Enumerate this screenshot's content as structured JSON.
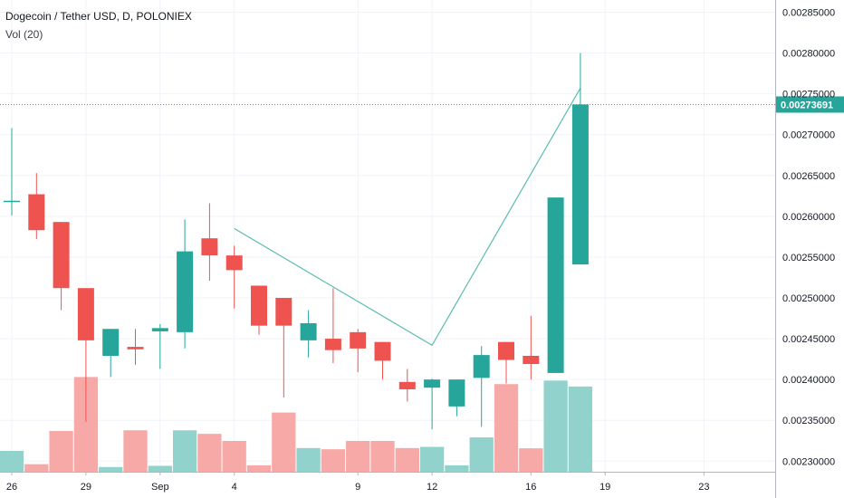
{
  "header": {
    "title": "Dogecoin / Tether USD, D, POLONIEX",
    "volume_label": "Vol (20)"
  },
  "colors": {
    "up": "#26a69a",
    "down": "#ef5350",
    "up_volume": "#92d2cc",
    "down_volume": "#f7a9a7",
    "last_price": "#26a69a",
    "trendline": "#5bbcb0",
    "grid": "#f0f3fa",
    "axis_text": "#131722"
  },
  "chart_data": {
    "type": "candlestick",
    "title": "Dogecoin / Tether USD, D, POLONIEX",
    "y_ticks": [
      "0.00230000",
      "0.00235000",
      "0.00240000",
      "0.00245000",
      "0.00250000",
      "0.00255000",
      "0.00260000",
      "0.00265000",
      "0.00270000",
      "0.00275000",
      "0.00280000",
      "0.00285000"
    ],
    "ylim": [
      0.002287,
      0.002865
    ],
    "x_ticks": [
      {
        "label": "26",
        "index": 0
      },
      {
        "label": "29",
        "index": 3
      },
      {
        "label": "Sep",
        "index": 6
      },
      {
        "label": "4",
        "index": 9
      },
      {
        "label": "9",
        "index": 14
      },
      {
        "label": "12",
        "index": 17
      },
      {
        "label": "16",
        "index": 21
      },
      {
        "label": "19",
        "index": 24
      },
      {
        "label": "23",
        "index": 28
      }
    ],
    "last_price": "0.00273691",
    "last_price_value": 0.00273691,
    "candles": [
      {
        "o": 0.002618,
        "h": 0.002708,
        "l": 0.002601,
        "c": 0.002619,
        "v": 0.88
      },
      {
        "o": 0.002627,
        "h": 0.002653,
        "l": 0.002572,
        "c": 0.002583,
        "v": 0.32
      },
      {
        "o": 0.002593,
        "h": 0.002593,
        "l": 0.002485,
        "c": 0.002512,
        "v": 1.72
      },
      {
        "o": 0.002512,
        "h": 0.002512,
        "l": 0.002348,
        "c": 0.002448,
        "v": 4.0
      },
      {
        "o": 0.002429,
        "h": 0.002462,
        "l": 0.002403,
        "c": 0.002462,
        "v": 0.2
      },
      {
        "o": 0.00244,
        "h": 0.002462,
        "l": 0.002418,
        "c": 0.002437,
        "v": 1.75
      },
      {
        "o": 0.002459,
        "h": 0.002468,
        "l": 0.002413,
        "c": 0.002463,
        "v": 0.25
      },
      {
        "o": 0.002458,
        "h": 0.002596,
        "l": 0.002438,
        "c": 0.002557,
        "v": 1.75
      },
      {
        "o": 0.002573,
        "h": 0.002616,
        "l": 0.002521,
        "c": 0.002552,
        "v": 1.6
      },
      {
        "o": 0.002552,
        "h": 0.002564,
        "l": 0.002487,
        "c": 0.002534,
        "v": 1.3
      },
      {
        "o": 0.002515,
        "h": 0.002515,
        "l": 0.002455,
        "c": 0.002466,
        "v": 0.27
      },
      {
        "o": 0.0025,
        "h": 0.0025,
        "l": 0.002378,
        "c": 0.002466,
        "v": 2.5
      },
      {
        "o": 0.002448,
        "h": 0.002485,
        "l": 0.002427,
        "c": 0.002469,
        "v": 1.0
      },
      {
        "o": 0.00245,
        "h": 0.002512,
        "l": 0.00242,
        "c": 0.002436,
        "v": 0.95
      },
      {
        "o": 0.002458,
        "h": 0.002462,
        "l": 0.002409,
        "c": 0.002438,
        "v": 1.3
      },
      {
        "o": 0.002446,
        "h": 0.002446,
        "l": 0.0024,
        "c": 0.002423,
        "v": 1.3
      },
      {
        "o": 0.002397,
        "h": 0.002413,
        "l": 0.002373,
        "c": 0.002388,
        "v": 1.0
      },
      {
        "o": 0.00239,
        "h": 0.002401,
        "l": 0.002339,
        "c": 0.0024,
        "v": 1.05
      },
      {
        "o": 0.002367,
        "h": 0.0024,
        "l": 0.002355,
        "c": 0.0024,
        "v": 0.27
      },
      {
        "o": 0.002402,
        "h": 0.002441,
        "l": 0.002342,
        "c": 0.00243,
        "v": 1.45
      },
      {
        "o": 0.002446,
        "h": 0.002446,
        "l": 0.002395,
        "c": 0.002424,
        "v": 3.7
      },
      {
        "o": 0.002429,
        "h": 0.002478,
        "l": 0.0024,
        "c": 0.002419,
        "v": 0.99
      },
      {
        "o": 0.002408,
        "h": 0.002623,
        "l": 0.002408,
        "c": 0.002623,
        "v": 3.85
      },
      {
        "o": 0.002541,
        "h": 0.0028,
        "l": 0.002541,
        "c": 0.002737,
        "v": 3.6
      }
    ],
    "drawings": [
      {
        "type": "trendline",
        "points": [
          [
            9,
            0.002585
          ],
          [
            17,
            0.002442
          ],
          [
            23,
            0.002757
          ]
        ]
      }
    ],
    "x_slots": 31,
    "volume_max": 5.2
  }
}
